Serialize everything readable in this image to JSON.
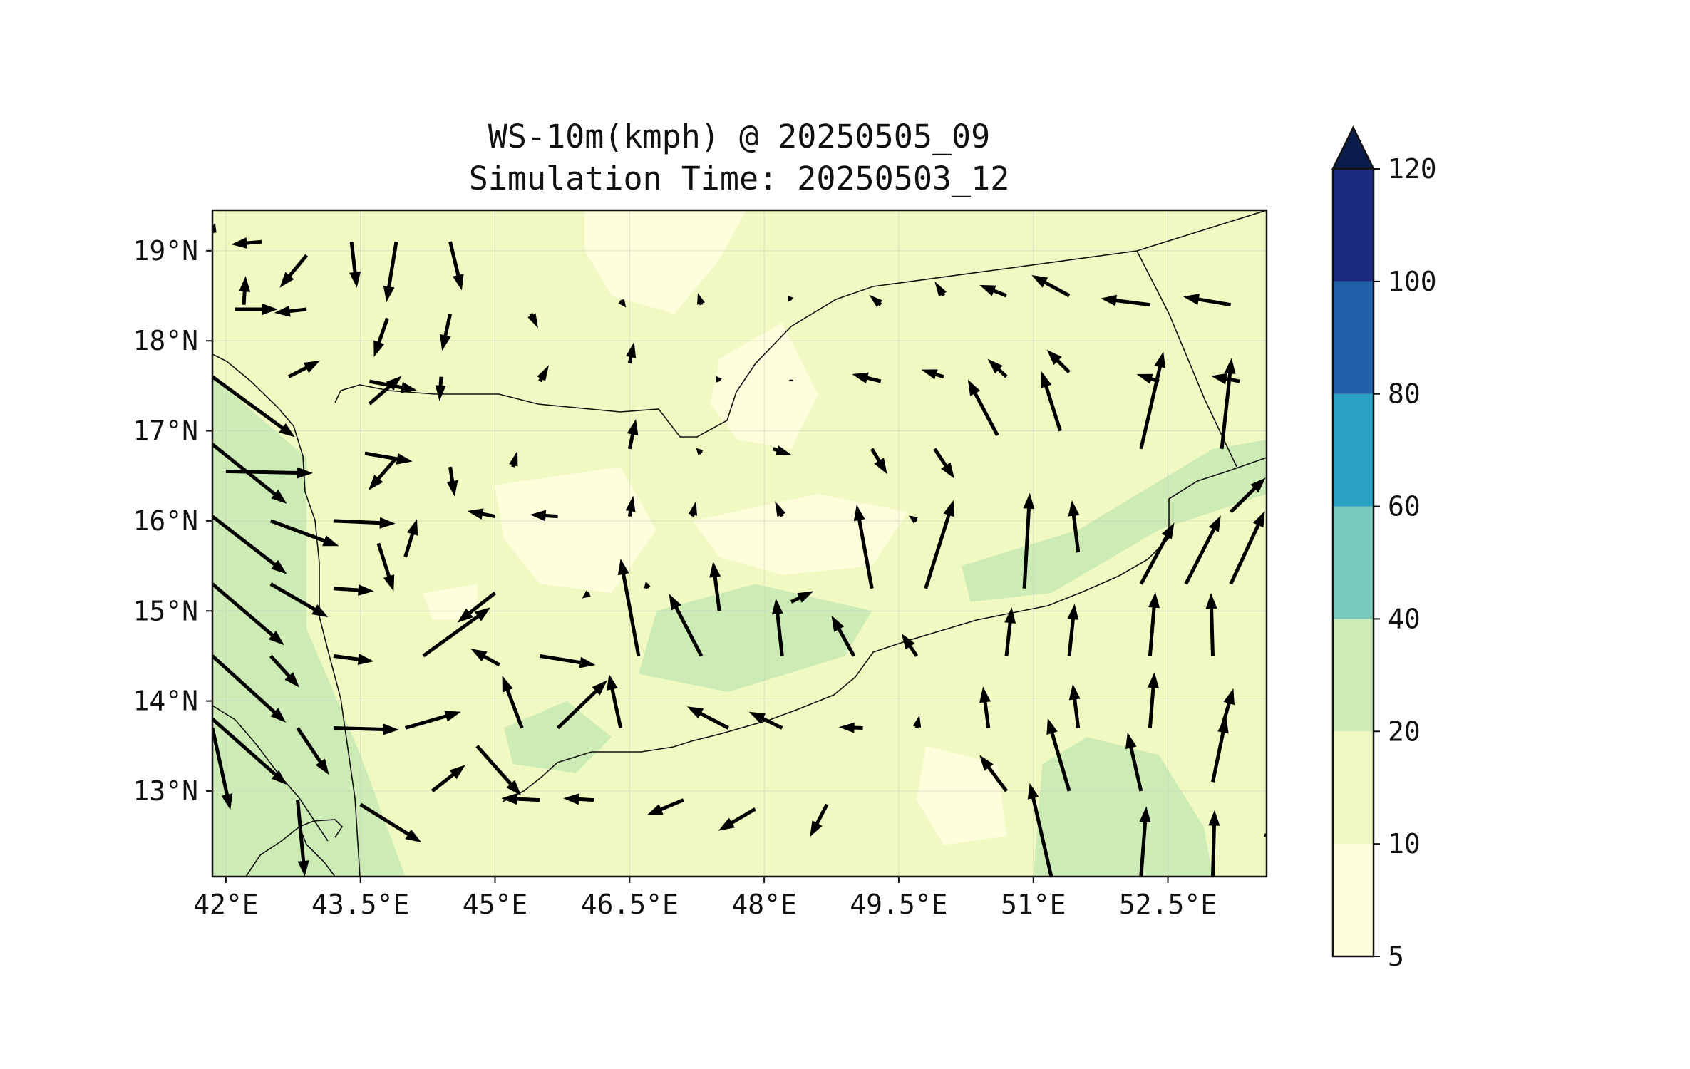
{
  "title": "WS-10m(kmph) @ 20250505_09",
  "subtitle": "Simulation Time: 20250503_12",
  "map": {
    "lon_range": [
      41.85,
      53.6
    ],
    "lat_range": [
      12.05,
      19.45
    ],
    "lon_ticks": [
      {
        "value": 42,
        "label": "42°E"
      },
      {
        "value": 43.5,
        "label": "43.5°E"
      },
      {
        "value": 45,
        "label": "45°E"
      },
      {
        "value": 46.5,
        "label": "46.5°E"
      },
      {
        "value": 48,
        "label": "48°E"
      },
      {
        "value": 49.5,
        "label": "49.5°E"
      },
      {
        "value": 51,
        "label": "51°E"
      },
      {
        "value": 52.5,
        "label": "52.5°E"
      }
    ],
    "lat_ticks": [
      {
        "value": 13,
        "label": "13°N"
      },
      {
        "value": 14,
        "label": "14°N"
      },
      {
        "value": 15,
        "label": "15°N"
      },
      {
        "value": 16,
        "label": "16°N"
      },
      {
        "value": 17,
        "label": "17°N"
      },
      {
        "value": 18,
        "label": "18°N"
      },
      {
        "value": 19,
        "label": "19°N"
      }
    ],
    "grid": true,
    "base_fill_color": "#f0f9c2"
  },
  "wind_field": {
    "regions": [
      {
        "level": "light",
        "color": "#fefedc",
        "points": [
          [
            46.0,
            19.45
          ],
          [
            47.8,
            19.45
          ],
          [
            47.5,
            18.9
          ],
          [
            47.0,
            18.3
          ],
          [
            46.3,
            18.5
          ],
          [
            46.0,
            19.0
          ]
        ]
      },
      {
        "level": "light",
        "color": "#fefedc",
        "points": [
          [
            47.5,
            17.8
          ],
          [
            48.2,
            18.2
          ],
          [
            48.6,
            17.4
          ],
          [
            48.3,
            16.8
          ],
          [
            47.7,
            16.9
          ],
          [
            47.4,
            17.3
          ]
        ]
      },
      {
        "level": "light",
        "color": "#fefedc",
        "points": [
          [
            45.0,
            16.4
          ],
          [
            46.4,
            16.6
          ],
          [
            46.8,
            15.9
          ],
          [
            46.3,
            15.2
          ],
          [
            45.5,
            15.3
          ],
          [
            45.1,
            15.8
          ]
        ]
      },
      {
        "level": "light",
        "color": "#fefedc",
        "points": [
          [
            47.2,
            16.0
          ],
          [
            48.6,
            16.3
          ],
          [
            49.6,
            16.1
          ],
          [
            49.2,
            15.5
          ],
          [
            48.2,
            15.4
          ],
          [
            47.5,
            15.6
          ]
        ]
      },
      {
        "level": "light",
        "color": "#fefedc",
        "points": [
          [
            49.8,
            13.5
          ],
          [
            50.6,
            13.3
          ],
          [
            50.7,
            12.5
          ],
          [
            50.0,
            12.4
          ],
          [
            49.7,
            12.9
          ]
        ]
      },
      {
        "level": "light",
        "color": "#fefedc",
        "points": [
          [
            44.2,
            15.2
          ],
          [
            44.8,
            15.3
          ],
          [
            44.8,
            14.9
          ],
          [
            44.3,
            14.9
          ]
        ]
      },
      {
        "level": "moderate",
        "color": "#cdebb4",
        "points": [
          [
            41.85,
            17.6
          ],
          [
            42.9,
            16.7
          ],
          [
            42.9,
            14.8
          ],
          [
            43.5,
            13.4
          ],
          [
            44.0,
            12.05
          ],
          [
            41.85,
            12.05
          ]
        ]
      },
      {
        "level": "moderate",
        "color": "#cdebb4",
        "points": [
          [
            50.2,
            15.5
          ],
          [
            51.5,
            15.9
          ],
          [
            53.0,
            16.8
          ],
          [
            53.6,
            16.9
          ],
          [
            53.6,
            16.3
          ],
          [
            52.4,
            15.9
          ],
          [
            51.2,
            15.2
          ],
          [
            50.3,
            15.1
          ]
        ]
      },
      {
        "level": "moderate",
        "color": "#cdebb4",
        "points": [
          [
            51.0,
            12.05
          ],
          [
            51.1,
            13.3
          ],
          [
            51.6,
            13.6
          ],
          [
            52.4,
            13.4
          ],
          [
            52.9,
            12.6
          ],
          [
            53.0,
            12.05
          ]
        ]
      },
      {
        "level": "moderate",
        "color": "#cdebb4",
        "points": [
          [
            46.8,
            15.0
          ],
          [
            47.9,
            15.3
          ],
          [
            49.2,
            15.0
          ],
          [
            48.9,
            14.5
          ],
          [
            47.6,
            14.1
          ],
          [
            46.6,
            14.3
          ]
        ]
      },
      {
        "level": "moderate",
        "color": "#cdebb4",
        "points": [
          [
            45.1,
            13.7
          ],
          [
            45.8,
            14.0
          ],
          [
            46.3,
            13.6
          ],
          [
            45.9,
            13.2
          ],
          [
            45.2,
            13.3
          ]
        ]
      }
    ],
    "arrows": [
      [
        42.4,
        19.1,
        -0.34,
        -0.03
      ],
      [
        42.2,
        18.4,
        0.02,
        0.32
      ],
      [
        42.9,
        18.95,
        -0.3,
        -0.36
      ],
      [
        43.4,
        19.1,
        0.06,
        -0.51
      ],
      [
        43.9,
        19.1,
        -0.11,
        -0.67
      ],
      [
        44.5,
        19.1,
        0.13,
        -0.54
      ],
      [
        42.1,
        18.35,
        0.48,
        0.0
      ],
      [
        42.9,
        18.35,
        -0.36,
        -0.04
      ],
      [
        43.8,
        18.25,
        -0.15,
        -0.43
      ],
      [
        44.5,
        18.3,
        -0.09,
        -0.41
      ],
      [
        45.4,
        18.3,
        0.08,
        -0.16
      ],
      [
        46.4,
        18.45,
        0.06,
        -0.08
      ],
      [
        47.3,
        18.4,
        -0.04,
        0.13
      ],
      [
        48.3,
        18.45,
        -0.04,
        0.05
      ],
      [
        49.3,
        18.4,
        -0.13,
        0.11
      ],
      [
        50.0,
        18.5,
        -0.1,
        0.16
      ],
      [
        50.7,
        18.5,
        -0.3,
        0.12
      ],
      [
        51.4,
        18.5,
        -0.42,
        0.23
      ],
      [
        52.3,
        18.4,
        -0.55,
        0.07
      ],
      [
        53.2,
        18.4,
        -0.53,
        0.09
      ],
      [
        42.7,
        17.6,
        0.35,
        0.18
      ],
      [
        43.6,
        17.55,
        0.53,
        -0.1
      ],
      [
        43.6,
        17.3,
        0.36,
        0.31
      ],
      [
        44.4,
        17.6,
        -0.02,
        -0.27
      ],
      [
        45.5,
        17.55,
        0.1,
        0.18
      ],
      [
        46.5,
        17.75,
        0.05,
        0.24
      ],
      [
        47.5,
        17.55,
        -0.04,
        0.06
      ],
      [
        48.3,
        17.55,
        0.0,
        0.02
      ],
      [
        49.3,
        17.55,
        -0.32,
        0.08
      ],
      [
        50.0,
        17.6,
        -0.25,
        0.08
      ],
      [
        50.7,
        17.6,
        -0.21,
        0.2
      ],
      [
        51.4,
        17.65,
        -0.25,
        0.25
      ],
      [
        52.4,
        17.55,
        -0.25,
        0.08
      ],
      [
        53.3,
        17.55,
        -0.32,
        0.06
      ],
      [
        41.85,
        17.6,
        0.92,
        -0.67
      ],
      [
        42.0,
        16.55,
        0.97,
        -0.02
      ],
      [
        43.55,
        16.75,
        0.53,
        -0.09
      ],
      [
        43.9,
        16.7,
        -0.31,
        -0.36
      ],
      [
        44.5,
        16.6,
        0.05,
        -0.33
      ],
      [
        45.2,
        16.6,
        0.05,
        0.18
      ],
      [
        46.5,
        16.8,
        0.07,
        0.33
      ],
      [
        47.3,
        16.75,
        -0.06,
        0.06
      ],
      [
        48.1,
        16.8,
        0.21,
        -0.07
      ],
      [
        49.2,
        16.8,
        0.17,
        -0.28
      ],
      [
        49.9,
        16.8,
        0.22,
        -0.33
      ],
      [
        50.6,
        16.95,
        -0.33,
        0.62
      ],
      [
        51.3,
        17.0,
        -0.21,
        0.66
      ],
      [
        52.2,
        16.8,
        0.25,
        1.08
      ],
      [
        53.1,
        16.8,
        0.11,
        1.01
      ],
      [
        41.85,
        16.85,
        0.83,
        -0.66
      ],
      [
        41.85,
        16.05,
        0.83,
        -0.64
      ],
      [
        42.5,
        16.0,
        0.76,
        -0.28
      ],
      [
        43.2,
        16.0,
        0.69,
        -0.03
      ],
      [
        43.7,
        15.75,
        0.17,
        -0.53
      ],
      [
        44.0,
        15.6,
        0.13,
        0.42
      ],
      [
        45.0,
        16.05,
        -0.31,
        0.06
      ],
      [
        45.7,
        16.05,
        -0.31,
        0.02
      ],
      [
        46.5,
        16.05,
        0.04,
        0.23
      ],
      [
        47.2,
        16.05,
        0.04,
        0.17
      ],
      [
        48.2,
        16.05,
        -0.08,
        0.17
      ],
      [
        49.2,
        15.25,
        -0.17,
        0.93
      ],
      [
        49.7,
        16.0,
        -0.09,
        0.06
      ],
      [
        49.8,
        15.25,
        0.31,
        0.98
      ],
      [
        50.9,
        15.25,
        0.06,
        1.06
      ],
      [
        51.5,
        15.65,
        -0.07,
        0.58
      ],
      [
        52.2,
        15.3,
        0.37,
        0.68
      ],
      [
        52.7,
        15.3,
        0.39,
        0.76
      ],
      [
        53.2,
        15.3,
        0.38,
        0.81
      ],
      [
        53.2,
        16.1,
        0.39,
        0.38
      ],
      [
        41.85,
        15.3,
        0.8,
        -0.68
      ],
      [
        42.5,
        15.3,
        0.64,
        -0.37
      ],
      [
        43.2,
        15.25,
        0.45,
        -0.03
      ],
      [
        45.0,
        15.2,
        -0.42,
        -0.33
      ],
      [
        46.05,
        15.2,
        -0.08,
        -0.06
      ],
      [
        46.6,
        14.5,
        -0.2,
        1.08
      ],
      [
        46.7,
        15.25,
        -0.02,
        0.08
      ],
      [
        47.3,
        14.5,
        -0.36,
        0.69
      ],
      [
        47.5,
        15.0,
        -0.07,
        0.55
      ],
      [
        48.2,
        14.5,
        -0.07,
        0.64
      ],
      [
        48.3,
        15.1,
        0.25,
        0.12
      ],
      [
        49.0,
        14.5,
        -0.25,
        0.45
      ],
      [
        49.7,
        14.5,
        -0.17,
        0.25
      ],
      [
        50.7,
        14.5,
        0.06,
        0.54
      ],
      [
        51.4,
        14.5,
        0.06,
        0.58
      ],
      [
        52.3,
        14.5,
        0.06,
        0.71
      ],
      [
        53.0,
        14.5,
        -0.02,
        0.7
      ],
      [
        41.85,
        14.5,
        0.82,
        -0.74
      ],
      [
        42.5,
        14.5,
        0.32,
        -0.35
      ],
      [
        43.2,
        14.5,
        0.45,
        -0.06
      ],
      [
        44.2,
        14.5,
        0.75,
        0.54
      ],
      [
        45.05,
        14.4,
        -0.32,
        0.18
      ],
      [
        45.5,
        14.5,
        0.62,
        -0.1
      ],
      [
        44.0,
        13.7,
        0.62,
        0.18
      ],
      [
        45.3,
        13.7,
        -0.22,
        0.58
      ],
      [
        45.7,
        13.7,
        0.55,
        0.53
      ],
      [
        46.4,
        13.7,
        -0.13,
        0.6
      ],
      [
        47.6,
        13.7,
        -0.46,
        0.24
      ],
      [
        48.2,
        13.7,
        -0.37,
        0.18
      ],
      [
        49.1,
        13.7,
        -0.27,
        0.01
      ],
      [
        49.7,
        13.7,
        0.03,
        0.14
      ],
      [
        50.5,
        13.7,
        -0.06,
        0.46
      ],
      [
        51.5,
        13.7,
        -0.06,
        0.49
      ],
      [
        52.3,
        13.7,
        0.05,
        0.62
      ],
      [
        53.1,
        13.7,
        0.13,
        0.44
      ],
      [
        41.85,
        13.8,
        0.83,
        -0.73
      ],
      [
        42.8,
        13.7,
        0.35,
        -0.52
      ],
      [
        43.2,
        13.7,
        0.73,
        -0.02
      ],
      [
        44.3,
        13.0,
        0.37,
        0.29
      ],
      [
        44.8,
        13.5,
        0.49,
        -0.55
      ],
      [
        45.5,
        12.9,
        -0.43,
        0.02
      ],
      [
        46.1,
        12.9,
        -0.34,
        0.02
      ],
      [
        47.1,
        12.9,
        -0.41,
        -0.17
      ],
      [
        47.9,
        12.8,
        -0.41,
        -0.24
      ],
      [
        48.7,
        12.85,
        -0.19,
        -0.36
      ],
      [
        50.7,
        13.0,
        -0.3,
        0.4
      ],
      [
        51.4,
        13.0,
        -0.24,
        0.81
      ],
      [
        51.2,
        12.05,
        -0.24,
        1.04
      ],
      [
        52.2,
        13.0,
        -0.15,
        0.65
      ],
      [
        52.2,
        12.05,
        0.06,
        0.78
      ],
      [
        53.0,
        13.1,
        0.15,
        0.72
      ],
      [
        53.0,
        12.05,
        0.02,
        0.74
      ],
      [
        41.85,
        13.7,
        0.2,
        -0.91
      ],
      [
        42.8,
        12.9,
        0.08,
        -0.85
      ],
      [
        43.5,
        12.85,
        0.68,
        -0.42
      ],
      [
        41.85,
        19.2,
        0.03,
        0.11
      ],
      [
        53.6,
        12.5,
        -0.02,
        0.03
      ]
    ]
  },
  "colorbar": {
    "levels": [
      {
        "label": "5",
        "color": "#fefedc"
      },
      {
        "label": "10",
        "color": "#f0f9c2"
      },
      {
        "label": "20",
        "color": "#cdebb4"
      },
      {
        "label": "40",
        "color": "#78c8bb"
      },
      {
        "label": "60",
        "color": "#2ba1c3"
      },
      {
        "label": "80",
        "color": "#2161a9"
      },
      {
        "label": "100",
        "color": "#1c2b7f"
      },
      {
        "label": "120",
        "color": "#0c1d4d"
      }
    ],
    "extend": "max"
  }
}
